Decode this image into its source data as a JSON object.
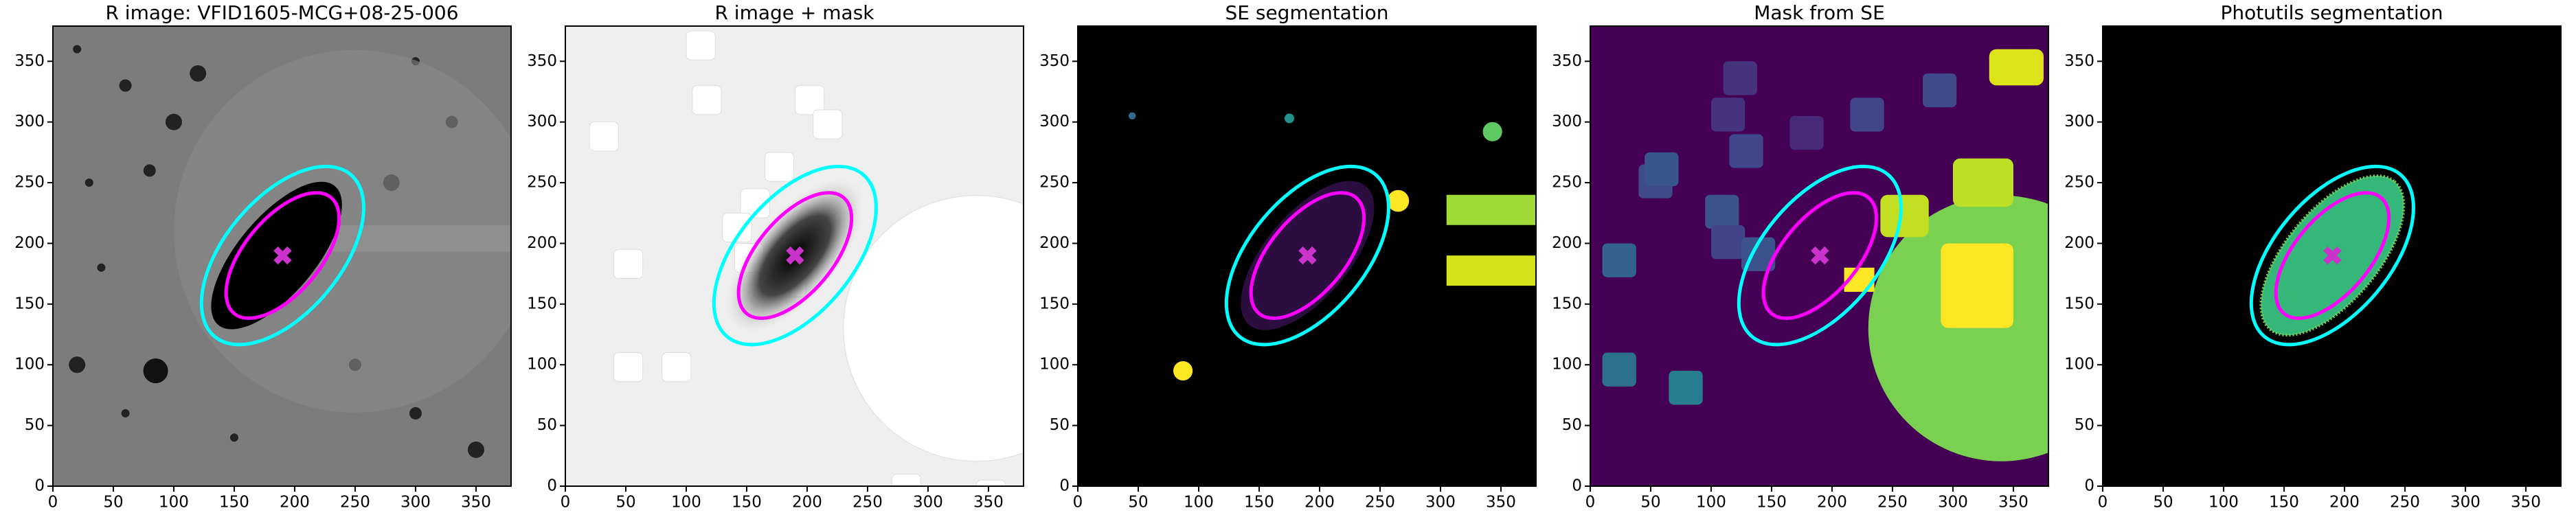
{
  "chart_data": [
    {
      "type": "image",
      "title": "R image: VFID1605-MCG+08-25-006",
      "background": "#7c7c7c",
      "xlim": [
        0,
        379
      ],
      "ylim": [
        0,
        379
      ],
      "xticks": [
        0,
        50,
        100,
        150,
        200,
        250,
        300,
        350
      ],
      "yticks": [
        0,
        50,
        100,
        150,
        200,
        250,
        300,
        350
      ],
      "ellipses": [
        {
          "cx": 190,
          "cy": 190,
          "width": 175,
          "height": 95,
          "angle": 50,
          "color": "#00ffff"
        },
        {
          "cx": 190,
          "cy": 190,
          "width": 125,
          "height": 62,
          "angle": 50,
          "color": "#ff00ff"
        }
      ],
      "marker": {
        "x": 190,
        "y": 190,
        "color": "#cc33cc"
      }
    },
    {
      "type": "image",
      "title": "R image + mask",
      "background": "#efefef",
      "xlim": [
        0,
        379
      ],
      "ylim": [
        0,
        379
      ],
      "xticks": [
        0,
        50,
        100,
        150,
        200,
        250,
        300,
        350
      ],
      "yticks": [
        0,
        50,
        100,
        150,
        200,
        250,
        300,
        350
      ],
      "ellipses": [
        {
          "cx": 190,
          "cy": 190,
          "width": 175,
          "height": 95,
          "angle": 50,
          "color": "#00ffff"
        },
        {
          "cx": 190,
          "cy": 190,
          "width": 125,
          "height": 62,
          "angle": 50,
          "color": "#ff00ff"
        }
      ],
      "marker": {
        "x": 190,
        "y": 190,
        "color": "#cc33cc"
      }
    },
    {
      "type": "image",
      "title": "SE segmentation",
      "background": "#000000",
      "xlim": [
        0,
        379
      ],
      "ylim": [
        0,
        379
      ],
      "xticks": [
        0,
        50,
        100,
        150,
        200,
        250,
        300,
        350
      ],
      "yticks": [
        0,
        50,
        100,
        150,
        200,
        250,
        300,
        350
      ],
      "ellipses": [
        {
          "cx": 190,
          "cy": 190,
          "width": 175,
          "height": 95,
          "angle": 50,
          "color": "#00ffff"
        },
        {
          "cx": 190,
          "cy": 190,
          "width": 125,
          "height": 62,
          "angle": 50,
          "color": "#ff00ff"
        }
      ],
      "marker": {
        "x": 190,
        "y": 190,
        "color": "#cc33cc"
      }
    },
    {
      "type": "image",
      "title": "Mask from SE",
      "background": "#440154",
      "xlim": [
        0,
        379
      ],
      "ylim": [
        0,
        379
      ],
      "xticks": [
        0,
        50,
        100,
        150,
        200,
        250,
        300,
        350
      ],
      "yticks": [
        0,
        50,
        100,
        150,
        200,
        250,
        300,
        350
      ],
      "ellipses": [
        {
          "cx": 190,
          "cy": 190,
          "width": 175,
          "height": 95,
          "angle": 50,
          "color": "#00ffff"
        },
        {
          "cx": 190,
          "cy": 190,
          "width": 125,
          "height": 62,
          "angle": 50,
          "color": "#ff00ff"
        }
      ],
      "marker": {
        "x": 190,
        "y": 190,
        "color": "#cc33cc"
      }
    },
    {
      "type": "image",
      "title": "Photutils segmentation",
      "background": "#000000",
      "xlim": [
        0,
        379
      ],
      "ylim": [
        0,
        379
      ],
      "xticks": [
        0,
        50,
        100,
        150,
        200,
        250,
        300,
        350
      ],
      "yticks": [
        0,
        50,
        100,
        150,
        200,
        250,
        300,
        350
      ],
      "ellipses": [
        {
          "cx": 190,
          "cy": 190,
          "width": 175,
          "height": 95,
          "angle": 50,
          "color": "#00ffff"
        },
        {
          "cx": 190,
          "cy": 190,
          "width": 125,
          "height": 62,
          "angle": 50,
          "color": "#ff00ff"
        }
      ],
      "marker": {
        "x": 190,
        "y": 190,
        "color": "#cc33cc"
      }
    }
  ]
}
